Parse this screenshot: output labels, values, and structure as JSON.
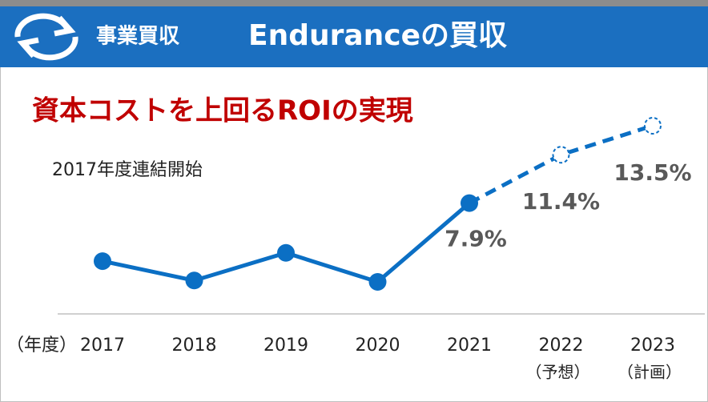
{
  "header": {
    "section": "事業買収",
    "title": "Enduranceの買収"
  },
  "chart_data": {
    "type": "line",
    "title": "資本コストを上回るROIの実現",
    "subtitle": "2017年度連結開始",
    "x_label": "（年度）",
    "categories": [
      "2017",
      "2018",
      "2019",
      "2020",
      "2021",
      "2022",
      "2023"
    ],
    "category_notes": [
      null,
      null,
      null,
      null,
      null,
      "（予想）",
      "（計画）"
    ],
    "values": [
      3.7,
      2.3,
      4.3,
      2.2,
      7.9,
      11.4,
      13.5
    ],
    "value_labels": [
      null,
      null,
      null,
      null,
      "7.9%",
      "11.4%",
      "13.5%"
    ],
    "color": "#0b6fc4"
  }
}
